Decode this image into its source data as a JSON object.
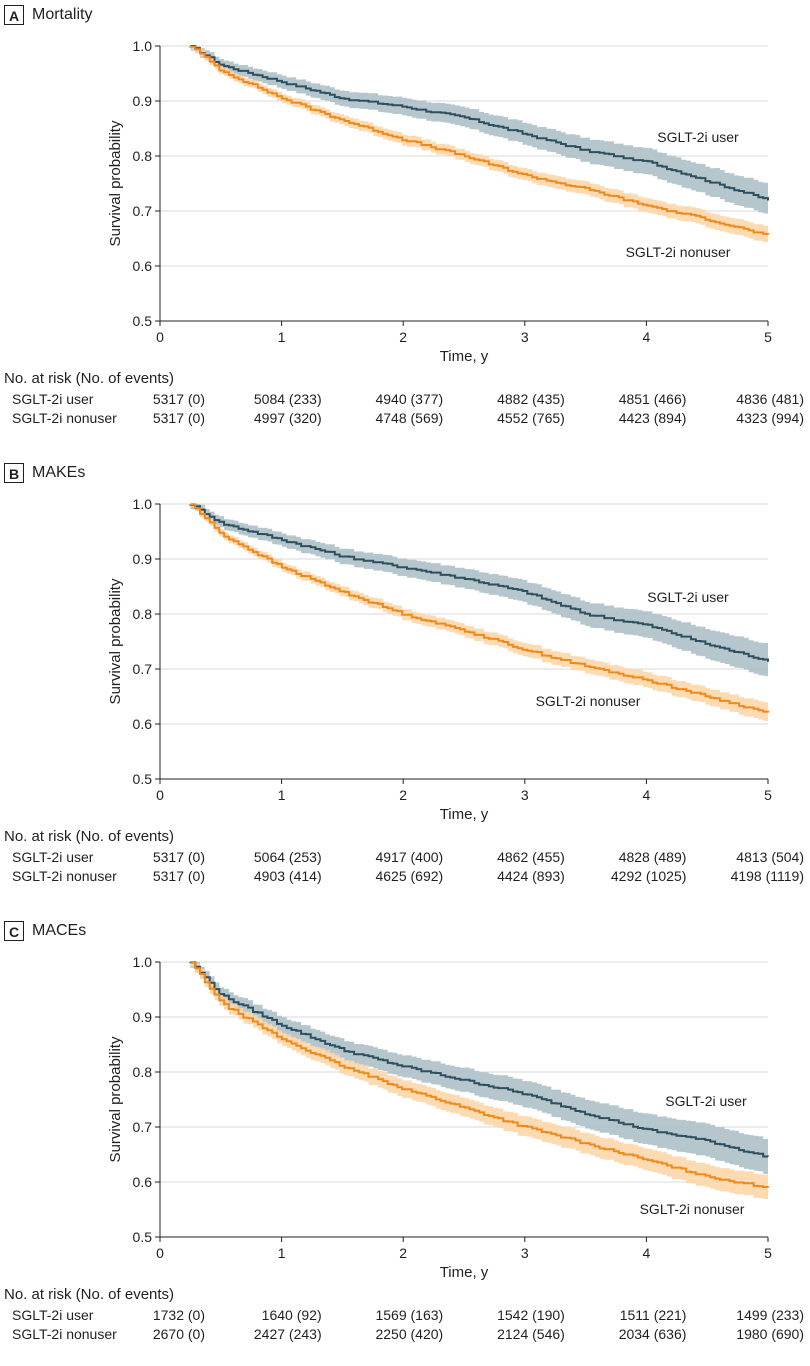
{
  "colors": {
    "user": "#2e4f5f",
    "user_band": "#a9bcc4",
    "nonuser": "#ee8a1c",
    "nonuser_band": "#fbd3a4",
    "grid": "#d9d9d9",
    "axis": "#231f20"
  },
  "chart_data": [
    {
      "type": "line",
      "letter": "A",
      "title": "Mortality",
      "xlabel": "Time, y",
      "ylabel": "Survival probability",
      "xlim": [
        0,
        5
      ],
      "ylim": [
        0.5,
        1.0
      ],
      "xticks": [
        "0",
        "1",
        "2",
        "3",
        "4",
        "5"
      ],
      "yticks": [
        "0.5",
        "0.6",
        "0.7",
        "0.8",
        "0.9",
        "1.0"
      ],
      "series": [
        {
          "name": "SGLT-2i user",
          "key": "user",
          "label": "SGLT-2i user",
          "x": [
            0.25,
            0.5,
            1.0,
            1.5,
            2.0,
            2.5,
            3.0,
            3.5,
            4.0,
            4.5,
            5.0
          ],
          "values": [
            1.0,
            0.965,
            0.935,
            0.905,
            0.89,
            0.87,
            0.84,
            0.81,
            0.79,
            0.755,
            0.72
          ],
          "band": [
            0.008,
            0.01,
            0.012,
            0.014,
            0.016,
            0.018,
            0.02,
            0.022,
            0.024,
            0.026,
            0.028
          ]
        },
        {
          "name": "SGLT-2i nonuser",
          "key": "nonuser",
          "label": "SGLT-2i nonuser",
          "x": [
            0.25,
            0.5,
            1.0,
            1.5,
            2.0,
            2.5,
            3.0,
            3.5,
            4.0,
            4.5,
            5.0
          ],
          "values": [
            1.0,
            0.955,
            0.905,
            0.865,
            0.83,
            0.8,
            0.765,
            0.74,
            0.71,
            0.685,
            0.655
          ],
          "band": [
            0.005,
            0.007,
            0.008,
            0.009,
            0.01,
            0.01,
            0.011,
            0.012,
            0.013,
            0.014,
            0.015
          ]
        }
      ],
      "risk": {
        "title": "No. at risk (No. of events)",
        "rows": [
          {
            "label": "SGLT-2i user",
            "values": [
              "5317 (0)",
              "5084 (233)",
              "4940 (377)",
              "4882 (435)",
              "4851 (466)",
              "4836 (481)"
            ]
          },
          {
            "label": "SGLT-2i nonuser",
            "values": [
              "5317 (0)",
              "4997 (320)",
              "4748 (569)",
              "4552 (765)",
              "4423 (894)",
              "4323 (994)"
            ]
          }
        ]
      }
    },
    {
      "type": "line",
      "letter": "B",
      "title": "MAKEs",
      "xlabel": "Time, y",
      "ylabel": "Survival probability",
      "xlim": [
        0,
        5
      ],
      "ylim": [
        0.5,
        1.0
      ],
      "xticks": [
        "0",
        "1",
        "2",
        "3",
        "4",
        "5"
      ],
      "yticks": [
        "0.5",
        "0.6",
        "0.7",
        "0.8",
        "0.9",
        "1.0"
      ],
      "series": [
        {
          "name": "SGLT-2i user",
          "key": "user",
          "label": "SGLT-2i user",
          "x": [
            0.25,
            0.5,
            1.0,
            1.5,
            2.0,
            2.5,
            3.0,
            3.5,
            4.0,
            4.5,
            5.0
          ],
          "values": [
            1.0,
            0.965,
            0.935,
            0.905,
            0.885,
            0.865,
            0.84,
            0.8,
            0.78,
            0.745,
            0.715
          ],
          "band": [
            0.008,
            0.01,
            0.012,
            0.014,
            0.016,
            0.018,
            0.02,
            0.022,
            0.024,
            0.027,
            0.03
          ]
        },
        {
          "name": "SGLT-2i nonuser",
          "key": "nonuser",
          "label": "SGLT-2i nonuser",
          "x": [
            0.25,
            0.5,
            1.0,
            1.5,
            2.0,
            2.5,
            3.0,
            3.5,
            4.0,
            4.5,
            5.0
          ],
          "values": [
            1.0,
            0.945,
            0.885,
            0.84,
            0.8,
            0.77,
            0.735,
            0.705,
            0.68,
            0.65,
            0.62
          ],
          "band": [
            0.005,
            0.007,
            0.008,
            0.009,
            0.01,
            0.011,
            0.012,
            0.013,
            0.014,
            0.015,
            0.017
          ]
        }
      ],
      "risk": {
        "title": "No. at risk (No. of events)",
        "rows": [
          {
            "label": "SGLT-2i user",
            "values": [
              "5317 (0)",
              "5064 (253)",
              "4917 (400)",
              "4862 (455)",
              "4828 (489)",
              "4813 (504)"
            ]
          },
          {
            "label": "SGLT-2i nonuser",
            "values": [
              "5317 (0)",
              "4903 (414)",
              "4625 (692)",
              "4424 (893)",
              "4292 (1025)",
              "4198 (1119)"
            ]
          }
        ]
      }
    },
    {
      "type": "line",
      "letter": "C",
      "title": "MACEs",
      "xlabel": "Time, y",
      "ylabel": "Survival probability",
      "xlim": [
        0,
        5
      ],
      "ylim": [
        0.5,
        1.0
      ],
      "xticks": [
        "0",
        "1",
        "2",
        "3",
        "4",
        "5"
      ],
      "yticks": [
        "0.5",
        "0.6",
        "0.7",
        "0.8",
        "0.9",
        "1.0"
      ],
      "series": [
        {
          "name": "SGLT-2i user",
          "key": "user",
          "label": "SGLT-2i user",
          "x": [
            0.25,
            0.5,
            1.0,
            1.5,
            2.0,
            2.5,
            3.0,
            3.5,
            4.0,
            4.5,
            5.0
          ],
          "values": [
            1.0,
            0.94,
            0.885,
            0.84,
            0.81,
            0.785,
            0.76,
            0.725,
            0.695,
            0.675,
            0.645
          ],
          "band": [
            0.01,
            0.012,
            0.015,
            0.018,
            0.02,
            0.022,
            0.024,
            0.026,
            0.028,
            0.03,
            0.032
          ]
        },
        {
          "name": "SGLT-2i nonuser",
          "key": "nonuser",
          "label": "SGLT-2i nonuser",
          "x": [
            0.25,
            0.5,
            1.0,
            1.5,
            2.0,
            2.5,
            3.0,
            3.5,
            4.0,
            4.5,
            5.0
          ],
          "values": [
            1.0,
            0.925,
            0.86,
            0.81,
            0.77,
            0.735,
            0.7,
            0.67,
            0.64,
            0.61,
            0.59
          ],
          "band": [
            0.008,
            0.01,
            0.012,
            0.014,
            0.016,
            0.017,
            0.018,
            0.019,
            0.02,
            0.021,
            0.022
          ]
        }
      ],
      "risk": {
        "title": "No. at risk (No. of events)",
        "rows": [
          {
            "label": "SGLT-2i user",
            "values": [
              "1732 (0)",
              "1640 (92)",
              "1569 (163)",
              "1542 (190)",
              "1511 (221)",
              "1499 (233)"
            ]
          },
          {
            "label": "SGLT-2i nonuser",
            "values": [
              "2670 (0)",
              "2427 (243)",
              "2250 (420)",
              "2124 (546)",
              "2034 (636)",
              "1980 (690)"
            ]
          }
        ]
      }
    }
  ]
}
